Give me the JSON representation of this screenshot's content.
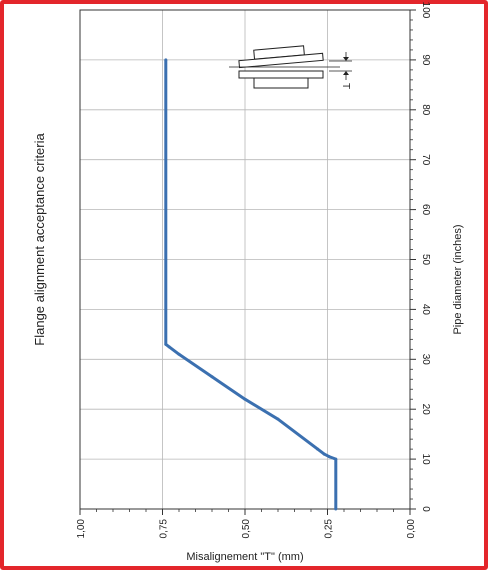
{
  "colors": {
    "frame": "#e3262b",
    "series": "#3b70b0",
    "grid": "#b7b7b7",
    "axis": "#333333"
  },
  "chart_data": {
    "type": "line",
    "orientation": "rotated-90",
    "title": "Flange alignment  acceptance criteria",
    "xlabel": "Misalignement \"T\" (mm)",
    "ylabel": "Pipe diameter (inches)",
    "xlim": [
      1.0,
      0.0
    ],
    "ylim": [
      0,
      100
    ],
    "x_ticks": [
      "1,00",
      "0,75",
      "0,50",
      "0,25",
      "0,00"
    ],
    "y_ticks": [
      "0",
      "10",
      "20",
      "30",
      "40",
      "50",
      "60",
      "70",
      "80",
      "90",
      "100"
    ],
    "grid": true,
    "series": [
      {
        "points": [
          {
            "x": 0.225,
            "y": 0
          },
          {
            "x": 0.225,
            "y": 10
          },
          {
            "x": 0.245,
            "y": 10.5
          },
          {
            "x": 0.26,
            "y": 11
          },
          {
            "x": 0.28,
            "y": 12
          },
          {
            "x": 0.4,
            "y": 18
          },
          {
            "x": 0.5,
            "y": 22
          },
          {
            "x": 0.6,
            "y": 26.5
          },
          {
            "x": 0.7,
            "y": 31
          },
          {
            "x": 0.73,
            "y": 32.5
          },
          {
            "x": 0.74,
            "y": 33
          },
          {
            "x": 0.74,
            "y": 90
          }
        ]
      }
    ],
    "inset_label": "T"
  }
}
